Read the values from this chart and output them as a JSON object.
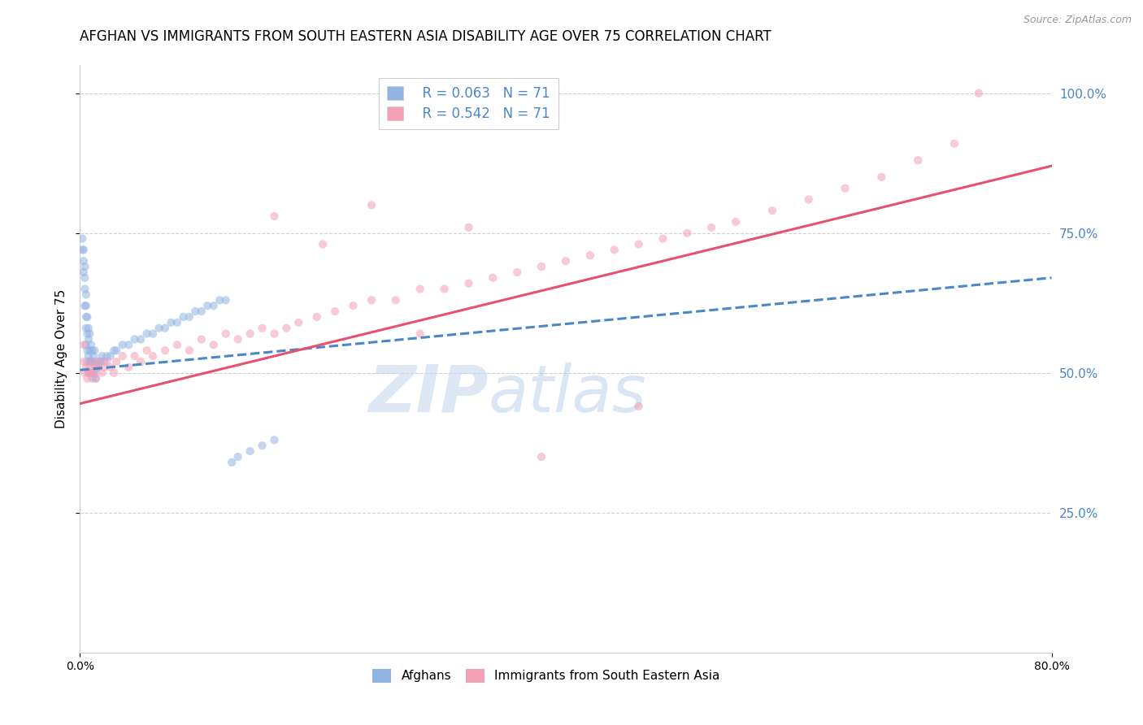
{
  "title": "AFGHAN VS IMMIGRANTS FROM SOUTH EASTERN ASIA DISABILITY AGE OVER 75 CORRELATION CHART",
  "source": "Source: ZipAtlas.com",
  "ylabel": "Disability Age Over 75",
  "legend_blue_r": "R = 0.063",
  "legend_blue_n": "N = 71",
  "legend_pink_r": "R = 0.542",
  "legend_pink_n": "N = 71",
  "legend_label_blue": "Afghans",
  "legend_label_pink": "Immigrants from South Eastern Asia",
  "blue_color": "#92b4e3",
  "pink_color": "#f4a0b5",
  "blue_line_color": "#4a86c8",
  "pink_line_color": "#e8516e",
  "watermark_zip": "ZIP",
  "watermark_atlas": "atlas",
  "xlim": [
    0.0,
    0.8
  ],
  "ylim": [
    0.0,
    1.05
  ],
  "blue_scatter_x": [
    0.002,
    0.002,
    0.003,
    0.003,
    0.003,
    0.004,
    0.004,
    0.004,
    0.004,
    0.005,
    0.005,
    0.005,
    0.005,
    0.005,
    0.006,
    0.006,
    0.006,
    0.006,
    0.007,
    0.007,
    0.007,
    0.007,
    0.008,
    0.008,
    0.008,
    0.008,
    0.009,
    0.009,
    0.009,
    0.01,
    0.01,
    0.01,
    0.011,
    0.011,
    0.012,
    0.012,
    0.013,
    0.013,
    0.014,
    0.015,
    0.016,
    0.017,
    0.018,
    0.02,
    0.022,
    0.025,
    0.028,
    0.03,
    0.035,
    0.04,
    0.045,
    0.05,
    0.055,
    0.06,
    0.065,
    0.07,
    0.075,
    0.08,
    0.085,
    0.09,
    0.095,
    0.1,
    0.105,
    0.11,
    0.115,
    0.12,
    0.125,
    0.13,
    0.14,
    0.15,
    0.16
  ],
  "blue_scatter_y": [
    0.72,
    0.74,
    0.68,
    0.7,
    0.72,
    0.62,
    0.65,
    0.67,
    0.69,
    0.55,
    0.58,
    0.6,
    0.62,
    0.64,
    0.52,
    0.54,
    0.57,
    0.6,
    0.5,
    0.53,
    0.56,
    0.58,
    0.5,
    0.52,
    0.54,
    0.57,
    0.5,
    0.52,
    0.55,
    0.49,
    0.52,
    0.54,
    0.5,
    0.53,
    0.5,
    0.54,
    0.49,
    0.52,
    0.51,
    0.51,
    0.52,
    0.52,
    0.53,
    0.52,
    0.53,
    0.53,
    0.54,
    0.54,
    0.55,
    0.55,
    0.56,
    0.56,
    0.57,
    0.57,
    0.58,
    0.58,
    0.59,
    0.59,
    0.6,
    0.6,
    0.61,
    0.61,
    0.62,
    0.62,
    0.63,
    0.63,
    0.34,
    0.35,
    0.36,
    0.37,
    0.38
  ],
  "pink_scatter_x": [
    0.003,
    0.003,
    0.004,
    0.005,
    0.006,
    0.007,
    0.008,
    0.009,
    0.01,
    0.011,
    0.012,
    0.013,
    0.015,
    0.016,
    0.018,
    0.02,
    0.022,
    0.025,
    0.028,
    0.03,
    0.035,
    0.04,
    0.045,
    0.05,
    0.055,
    0.06,
    0.07,
    0.08,
    0.09,
    0.1,
    0.11,
    0.12,
    0.13,
    0.14,
    0.15,
    0.16,
    0.17,
    0.18,
    0.195,
    0.21,
    0.225,
    0.24,
    0.26,
    0.28,
    0.3,
    0.32,
    0.34,
    0.36,
    0.38,
    0.4,
    0.42,
    0.44,
    0.46,
    0.48,
    0.5,
    0.52,
    0.54,
    0.57,
    0.6,
    0.63,
    0.66,
    0.69,
    0.72,
    0.74,
    0.46,
    0.38,
    0.32,
    0.28,
    0.24,
    0.2,
    0.16
  ],
  "pink_scatter_y": [
    0.52,
    0.55,
    0.5,
    0.51,
    0.49,
    0.5,
    0.51,
    0.5,
    0.52,
    0.5,
    0.51,
    0.49,
    0.51,
    0.52,
    0.5,
    0.51,
    0.52,
    0.51,
    0.5,
    0.52,
    0.53,
    0.51,
    0.53,
    0.52,
    0.54,
    0.53,
    0.54,
    0.55,
    0.54,
    0.56,
    0.55,
    0.57,
    0.56,
    0.57,
    0.58,
    0.57,
    0.58,
    0.59,
    0.6,
    0.61,
    0.62,
    0.63,
    0.63,
    0.65,
    0.65,
    0.66,
    0.67,
    0.68,
    0.69,
    0.7,
    0.71,
    0.72,
    0.73,
    0.74,
    0.75,
    0.76,
    0.77,
    0.79,
    0.81,
    0.83,
    0.85,
    0.88,
    0.91,
    1.0,
    0.44,
    0.35,
    0.76,
    0.57,
    0.8,
    0.73,
    0.78
  ],
  "blue_trendline_x": [
    0.0,
    0.8
  ],
  "blue_trendline_y": [
    0.505,
    0.67
  ],
  "pink_trendline_x": [
    0.0,
    0.8
  ],
  "pink_trendline_y": [
    0.445,
    0.87
  ],
  "background_color": "#ffffff",
  "grid_color": "#d0d0d0",
  "title_fontsize": 12,
  "axis_label_fontsize": 11,
  "tick_fontsize": 10,
  "scatter_alpha": 0.55,
  "scatter_size": 55
}
